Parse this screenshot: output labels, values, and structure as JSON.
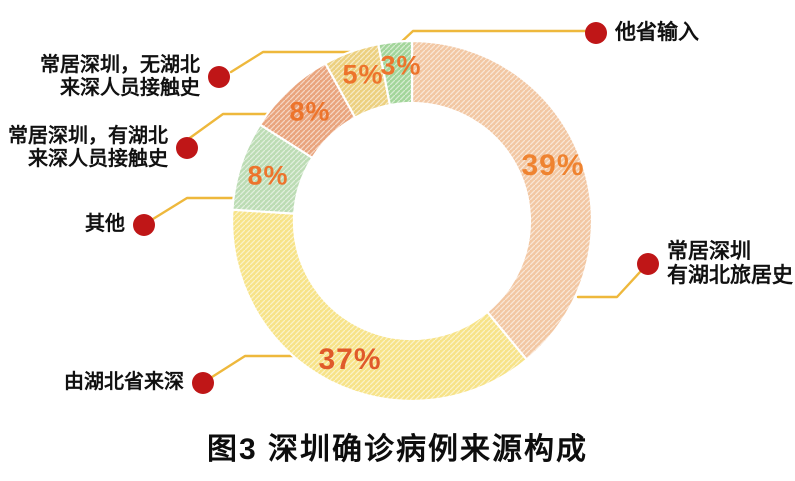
{
  "title": "图3 深圳确诊病例来源构成",
  "colors": {
    "background": "#ffffff",
    "dot": "#bf1617",
    "leader": "#eeb83c",
    "label_text": "#111111",
    "separator": "#ffffff"
  },
  "chart_data": {
    "type": "pie",
    "variant": "donut",
    "title": "图3 深圳确诊病例来源构成",
    "unit": "percent",
    "direction": "clockwise",
    "start_angle_deg": 0,
    "legend_position": "callouts",
    "segments": [
      {
        "label": "常居深圳 有湖北旅居史",
        "label_lines": [
          "常居深圳",
          "有湖北旅居史"
        ],
        "value": 39,
        "pct": "39%",
        "color": "#f2c7a3",
        "pct_color": "#ef8330"
      },
      {
        "label": "由湖北省来深",
        "label_lines": [
          "由湖北省来深"
        ],
        "value": 37,
        "pct": "37%",
        "color": "#f7e388",
        "pct_color": "#e05a2a"
      },
      {
        "label": "其他",
        "label_lines": [
          "其他"
        ],
        "value": 8,
        "pct": "8%",
        "color": "#bcdcb4",
        "pct_color": "#ed742c"
      },
      {
        "label": "常居深圳，有湖北来深人员接触史",
        "label_lines": [
          "常居深圳，有湖北",
          "来深人员接触史"
        ],
        "value": 8,
        "pct": "8%",
        "color": "#e9a47d",
        "pct_color": "#ed742c"
      },
      {
        "label": "常居深圳，无湖北来深人员接触史",
        "label_lines": [
          "常居深圳，无湖北",
          "来深人员接触史"
        ],
        "value": 5,
        "pct": "5%",
        "color": "#ecd07f",
        "pct_color": "#ed742c"
      },
      {
        "label": "他省输入",
        "label_lines": [
          "他省输入"
        ],
        "value": 3,
        "pct": "3%",
        "color": "#a3d59a",
        "pct_color": "#ed742c"
      }
    ]
  }
}
